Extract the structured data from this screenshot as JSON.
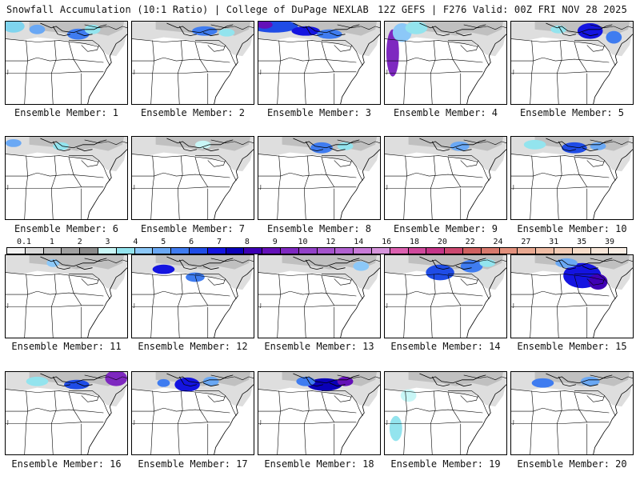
{
  "header": {
    "left": "Snowfall Accumulation (10:1 Ratio) | College of DuPage NEXLAB",
    "right": "12Z GEFS | F276 Valid: 00Z FRI NOV 28 2025"
  },
  "caption_prefix": "Ensemble Member: ",
  "members": [
    "1",
    "2",
    "3",
    "4",
    "5",
    "6",
    "7",
    "8",
    "9",
    "10",
    "11",
    "12",
    "13",
    "14",
    "15",
    "16",
    "17",
    "18",
    "19",
    "20"
  ],
  "legend": {
    "ticks": [
      "0.1",
      "1",
      "2",
      "3",
      "4",
      "5",
      "6",
      "7",
      "8",
      "9",
      "10",
      "12",
      "14",
      "16",
      "18",
      "20",
      "22",
      "24",
      "27",
      "31",
      "35",
      "39"
    ],
    "colors": [
      "#f2f2f2",
      "#dadada",
      "#bebebe",
      "#a0a0a0",
      "#8a8a8a",
      "#c8f6f6",
      "#93e4ee",
      "#8cc8f8",
      "#6aa8f4",
      "#3f7cf0",
      "#1f4ce6",
      "#1414e0",
      "#0a00b8",
      "#3c00b4",
      "#6410b8",
      "#7e28c0",
      "#9240c8",
      "#a452cc",
      "#b060d0",
      "#c87ad8",
      "#d694dc",
      "#dc60b0",
      "#d0489c",
      "#c43488",
      "#cc4870",
      "#d06060",
      "#d8786c",
      "#e2907c",
      "#e8a890",
      "#eebca4",
      "#f2ccb6",
      "#f6dcc8",
      "#f8e6d8",
      "#faeee4"
    ]
  },
  "labels": {
    "map_letter": "J"
  }
}
